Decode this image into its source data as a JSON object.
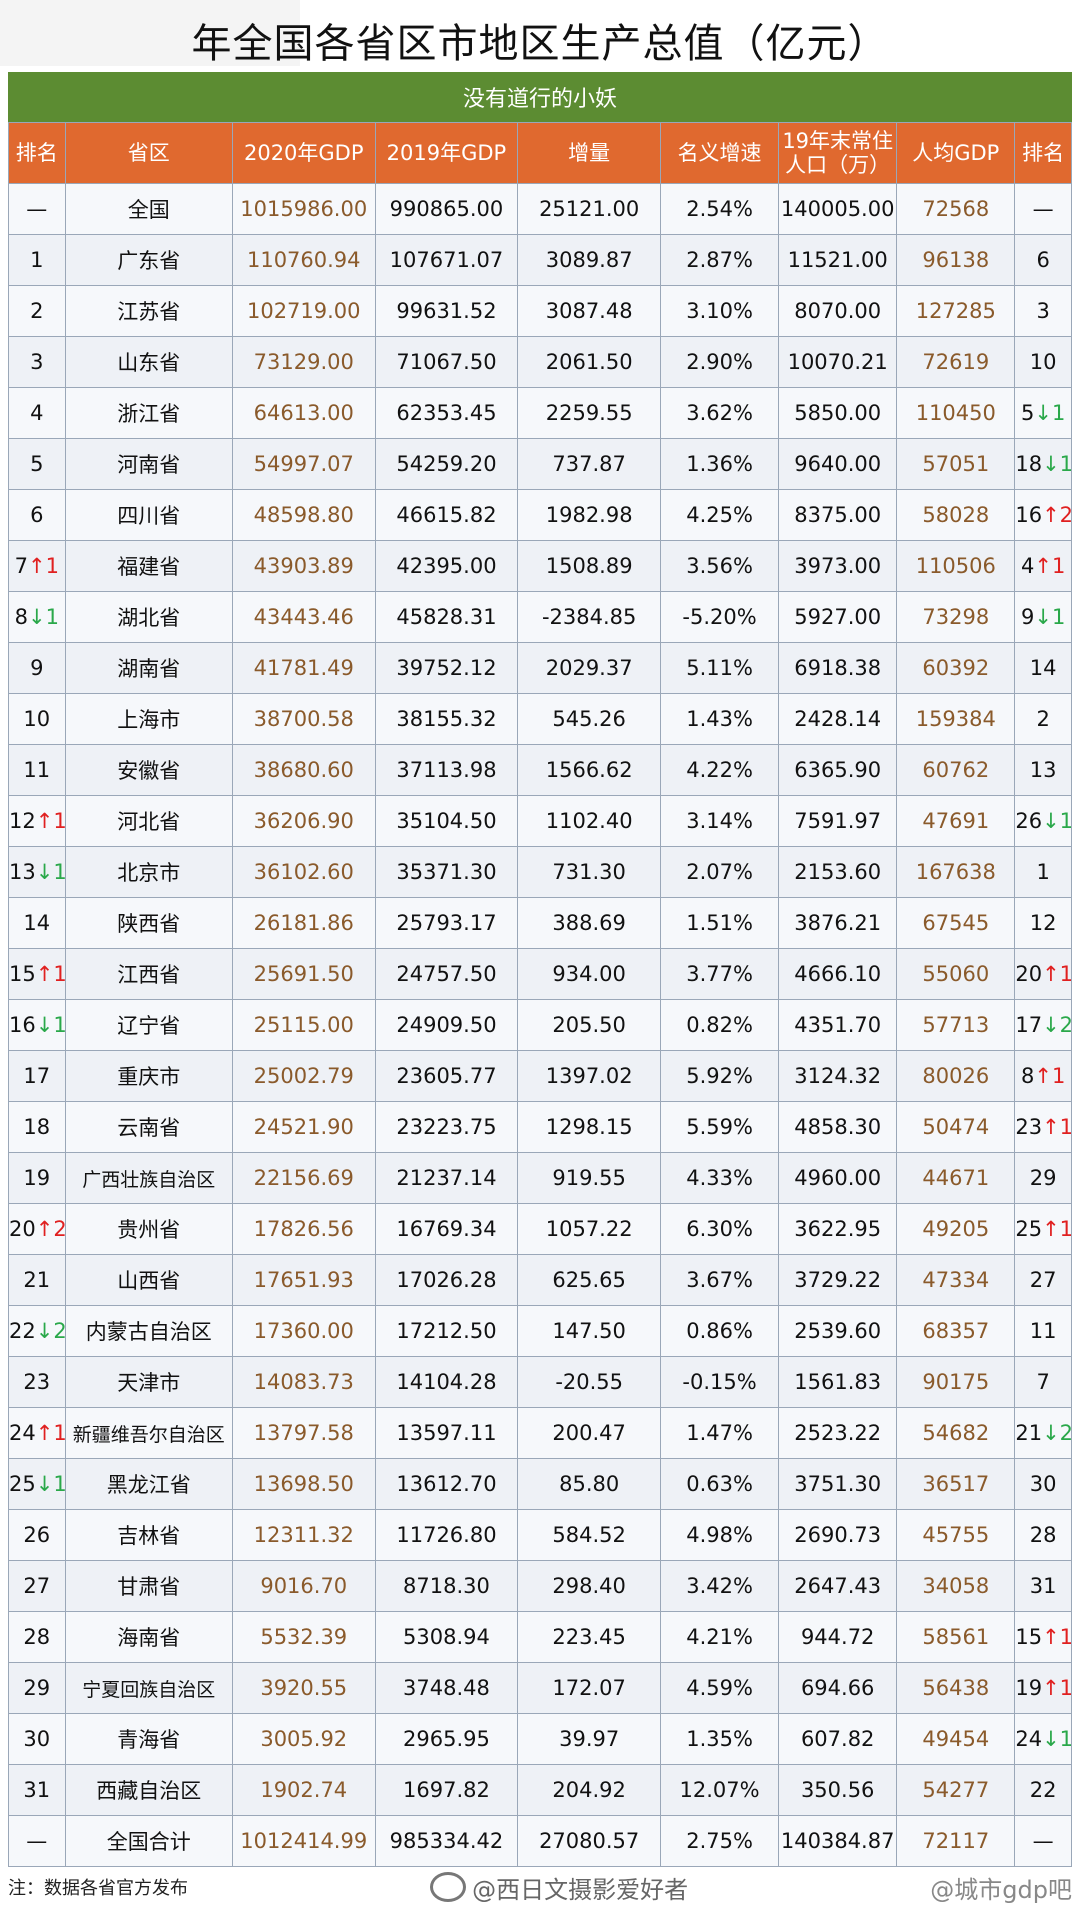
{
  "title": "年全国各省区市地区生产总值（亿元）",
  "banner": "没有道行的小妖",
  "headers": [
    "排名",
    "省区",
    "2020年GDP",
    "2019年GDP",
    "增量",
    "名义增速",
    "19年末常住人口（万）",
    "人均GDP",
    "排名"
  ],
  "rows": [
    {
      "r": "—",
      "p": "全国",
      "g20": "1015986.00",
      "g19": "990865.00",
      "inc": "25121.00",
      "rate": "2.54%",
      "pop": "140005.00",
      "pc": "72568",
      "r2": "—"
    },
    {
      "r": "1",
      "p": "广东省",
      "g20": "110760.94",
      "g19": "107671.07",
      "inc": "3089.87",
      "rate": "2.87%",
      "pop": "11521.00",
      "pc": "96138",
      "r2": "6"
    },
    {
      "r": "2",
      "p": "江苏省",
      "g20": "102719.00",
      "g19": "99631.52",
      "inc": "3087.48",
      "rate": "3.10%",
      "pop": "8070.00",
      "pc": "127285",
      "r2": "3"
    },
    {
      "r": "3",
      "p": "山东省",
      "g20": "73129.00",
      "g19": "71067.50",
      "inc": "2061.50",
      "rate": "2.90%",
      "pop": "10070.21",
      "pc": "72619",
      "r2": "10"
    },
    {
      "r": "4",
      "p": "浙江省",
      "g20": "64613.00",
      "g19": "62353.45",
      "inc": "2259.55",
      "rate": "3.62%",
      "pop": "5850.00",
      "pc": "110450",
      "r2": "5",
      "r2m": "↓1",
      "r2d": "down"
    },
    {
      "r": "5",
      "p": "河南省",
      "g20": "54997.07",
      "g19": "54259.20",
      "inc": "737.87",
      "rate": "1.36%",
      "pop": "9640.00",
      "pc": "57051",
      "r2": "18",
      "r2m": "↓1",
      "r2d": "down"
    },
    {
      "r": "6",
      "p": "四川省",
      "g20": "48598.80",
      "g19": "46615.82",
      "inc": "1982.98",
      "rate": "4.25%",
      "pop": "8375.00",
      "pc": "58028",
      "r2": "16",
      "r2m": "↑2",
      "r2d": "up"
    },
    {
      "r": "7",
      "rm": "↑1",
      "rd": "up",
      "p": "福建省",
      "g20": "43903.89",
      "g19": "42395.00",
      "inc": "1508.89",
      "rate": "3.56%",
      "pop": "3973.00",
      "pc": "110506",
      "r2": "4",
      "r2m": "↑1",
      "r2d": "up"
    },
    {
      "r": "8",
      "rm": "↓1",
      "rd": "down",
      "p": "湖北省",
      "g20": "43443.46",
      "g19": "45828.31",
      "inc": "-2384.85",
      "rate": "-5.20%",
      "pop": "5927.00",
      "pc": "73298",
      "r2": "9",
      "r2m": "↓1",
      "r2d": "down"
    },
    {
      "r": "9",
      "p": "湖南省",
      "g20": "41781.49",
      "g19": "39752.12",
      "inc": "2029.37",
      "rate": "5.11%",
      "pop": "6918.38",
      "pc": "60392",
      "r2": "14"
    },
    {
      "r": "10",
      "p": "上海市",
      "g20": "38700.58",
      "g19": "38155.32",
      "inc": "545.26",
      "rate": "1.43%",
      "pop": "2428.14",
      "pc": "159384",
      "r2": "2"
    },
    {
      "r": "11",
      "p": "安徽省",
      "g20": "38680.60",
      "g19": "37113.98",
      "inc": "1566.62",
      "rate": "4.22%",
      "pop": "6365.90",
      "pc": "60762",
      "r2": "13"
    },
    {
      "r": "12",
      "rm": "↑1",
      "rd": "up",
      "p": "河北省",
      "g20": "36206.90",
      "g19": "35104.50",
      "inc": "1102.40",
      "rate": "3.14%",
      "pop": "7591.97",
      "pc": "47691",
      "r2": "26",
      "r2m": "↓1",
      "r2d": "down"
    },
    {
      "r": "13",
      "rm": "↓1",
      "rd": "down",
      "p": "北京市",
      "g20": "36102.60",
      "g19": "35371.30",
      "inc": "731.30",
      "rate": "2.07%",
      "pop": "2153.60",
      "pc": "167638",
      "r2": "1"
    },
    {
      "r": "14",
      "p": "陕西省",
      "g20": "26181.86",
      "g19": "25793.17",
      "inc": "388.69",
      "rate": "1.51%",
      "pop": "3876.21",
      "pc": "67545",
      "r2": "12"
    },
    {
      "r": "15",
      "rm": "↑1",
      "rd": "up",
      "p": "江西省",
      "g20": "25691.50",
      "g19": "24757.50",
      "inc": "934.00",
      "rate": "3.77%",
      "pop": "4666.10",
      "pc": "55060",
      "r2": "20",
      "r2m": "↑1",
      "r2d": "up"
    },
    {
      "r": "16",
      "rm": "↓1",
      "rd": "down",
      "p": "辽宁省",
      "g20": "25115.00",
      "g19": "24909.50",
      "inc": "205.50",
      "rate": "0.82%",
      "pop": "4351.70",
      "pc": "57713",
      "r2": "17",
      "r2m": "↓2",
      "r2d": "down"
    },
    {
      "r": "17",
      "p": "重庆市",
      "g20": "25002.79",
      "g19": "23605.77",
      "inc": "1397.02",
      "rate": "5.92%",
      "pop": "3124.32",
      "pc": "80026",
      "r2": "8",
      "r2m": "↑1",
      "r2d": "up"
    },
    {
      "r": "18",
      "p": "云南省",
      "g20": "24521.90",
      "g19": "23223.75",
      "inc": "1298.15",
      "rate": "5.59%",
      "pop": "4858.30",
      "pc": "50474",
      "r2": "23",
      "r2m": "↑1",
      "r2d": "up"
    },
    {
      "r": "19",
      "p": "广西壮族自治区",
      "g20": "22156.69",
      "g19": "21237.14",
      "inc": "919.55",
      "rate": "4.33%",
      "pop": "4960.00",
      "pc": "44671",
      "r2": "29"
    },
    {
      "r": "20",
      "rm": "↑2",
      "rd": "up",
      "p": "贵州省",
      "g20": "17826.56",
      "g19": "16769.34",
      "inc": "1057.22",
      "rate": "6.30%",
      "pop": "3622.95",
      "pc": "49205",
      "r2": "25",
      "r2m": "↑1",
      "r2d": "up"
    },
    {
      "r": "21",
      "p": "山西省",
      "g20": "17651.93",
      "g19": "17026.28",
      "inc": "625.65",
      "rate": "3.67%",
      "pop": "3729.22",
      "pc": "47334",
      "r2": "27"
    },
    {
      "r": "22",
      "rm": "↓2",
      "rd": "down",
      "p": "内蒙古自治区",
      "g20": "17360.00",
      "g19": "17212.50",
      "inc": "147.50",
      "rate": "0.86%",
      "pop": "2539.60",
      "pc": "68357",
      "r2": "11"
    },
    {
      "r": "23",
      "p": "天津市",
      "g20": "14083.73",
      "g19": "14104.28",
      "inc": "-20.55",
      "rate": "-0.15%",
      "pop": "1561.83",
      "pc": "90175",
      "r2": "7"
    },
    {
      "r": "24",
      "rm": "↑1",
      "rd": "up",
      "p": "新疆维吾尔自治区",
      "g20": "13797.58",
      "g19": "13597.11",
      "inc": "200.47",
      "rate": "1.47%",
      "pop": "2523.22",
      "pc": "54682",
      "r2": "21",
      "r2m": "↓2",
      "r2d": "down"
    },
    {
      "r": "25",
      "rm": "↓1",
      "rd": "down",
      "p": "黑龙江省",
      "g20": "13698.50",
      "g19": "13612.70",
      "inc": "85.80",
      "rate": "0.63%",
      "pop": "3751.30",
      "pc": "36517",
      "r2": "30"
    },
    {
      "r": "26",
      "p": "吉林省",
      "g20": "12311.32",
      "g19": "11726.80",
      "inc": "584.52",
      "rate": "4.98%",
      "pop": "2690.73",
      "pc": "45755",
      "r2": "28"
    },
    {
      "r": "27",
      "p": "甘肃省",
      "g20": "9016.70",
      "g19": "8718.30",
      "inc": "298.40",
      "rate": "3.42%",
      "pop": "2647.43",
      "pc": "34058",
      "r2": "31"
    },
    {
      "r": "28",
      "p": "海南省",
      "g20": "5532.39",
      "g19": "5308.94",
      "inc": "223.45",
      "rate": "4.21%",
      "pop": "944.72",
      "pc": "58561",
      "r2": "15",
      "r2m": "↑1",
      "r2d": "up"
    },
    {
      "r": "29",
      "p": "宁夏回族自治区",
      "g20": "3920.55",
      "g19": "3748.48",
      "inc": "172.07",
      "rate": "4.59%",
      "pop": "694.66",
      "pc": "56438",
      "r2": "19",
      "r2m": "↑1",
      "r2d": "up"
    },
    {
      "r": "30",
      "p": "青海省",
      "g20": "3005.92",
      "g19": "2965.95",
      "inc": "39.97",
      "rate": "1.35%",
      "pop": "607.82",
      "pc": "49454",
      "r2": "24",
      "r2m": "↓1",
      "r2d": "down"
    },
    {
      "r": "31",
      "p": "西藏自治区",
      "g20": "1902.74",
      "g19": "1697.82",
      "inc": "204.92",
      "rate": "12.07%",
      "pop": "350.56",
      "pc": "54277",
      "r2": "22"
    },
    {
      "r": "—",
      "p": "全国合计",
      "g20": "1012414.99",
      "g19": "985334.42",
      "inc": "27080.57",
      "rate": "2.75%",
      "pop": "140384.87",
      "pc": "72117",
      "r2": "—"
    }
  ],
  "footer": {
    "note": "注：数据各省官方发布",
    "watermark1": "@西日文摄影爱好者",
    "watermark2": "@城市gdp吧"
  },
  "colors": {
    "header": "#e0692f",
    "banner": "#5c8c32",
    "up": "#e02020",
    "down": "#2aa84a"
  }
}
